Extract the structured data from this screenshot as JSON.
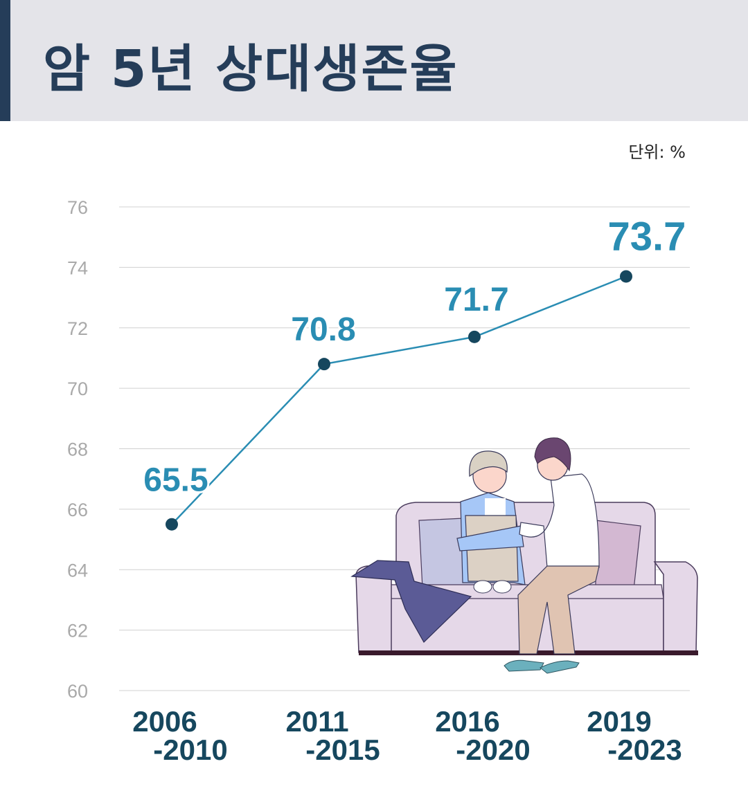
{
  "header": {
    "title": "암 5년 상대생존율"
  },
  "unit_label": "단위: %",
  "colors": {
    "accent": "#2a8db3",
    "line": "#2a8db3",
    "point": "#16475e",
    "title": "#253d59",
    "header_bg": "#e4e4e9",
    "xlabel": "#16475e"
  },
  "chart_data": {
    "type": "line",
    "title": "암 5년 상대생존율",
    "xlabel": "",
    "ylabel": "%",
    "categories": [
      [
        "2006",
        "-2010"
      ],
      [
        "2011",
        "-2015"
      ],
      [
        "2016",
        "-2020"
      ],
      [
        "2019",
        "-2023"
      ]
    ],
    "values": [
      65.5,
      70.8,
      71.7,
      73.7
    ],
    "data_labels": [
      "65.5",
      "70.8",
      "71.7",
      "73.7"
    ],
    "ylim": [
      60,
      76
    ],
    "yticks": [
      "60",
      "62",
      "64",
      "66",
      "68",
      "70",
      "72",
      "74",
      "76"
    ],
    "grid": true,
    "legend": "none"
  }
}
